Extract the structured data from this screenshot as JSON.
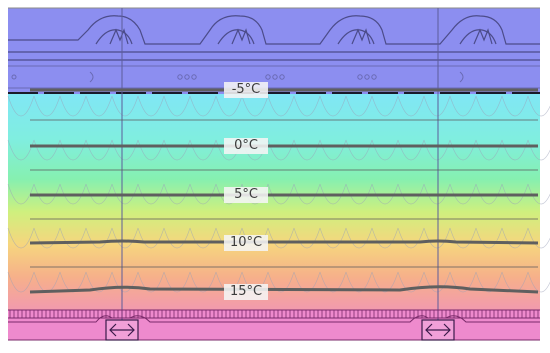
{
  "diagram": {
    "type": "roof-construction-isotherm-section",
    "isotherms": [
      {
        "label": "-5°C"
      },
      {
        "label": "0°C"
      },
      {
        "label": "5°C"
      },
      {
        "label": "10°C"
      },
      {
        "label": "15°C"
      }
    ],
    "icons": [
      "tile-icon",
      "drain-hole-icon",
      "double-arrow-icon"
    ],
    "colors": {
      "roof_zone": "#8c8cf0",
      "cold": "#7fdcf0",
      "cool": "#80f0c8",
      "mild": "#dcf080",
      "warm": "#f8d07a",
      "hot": "#f49ab0",
      "inner": "#ec86cc",
      "isotherm_line": "#5f5f5f"
    }
  }
}
